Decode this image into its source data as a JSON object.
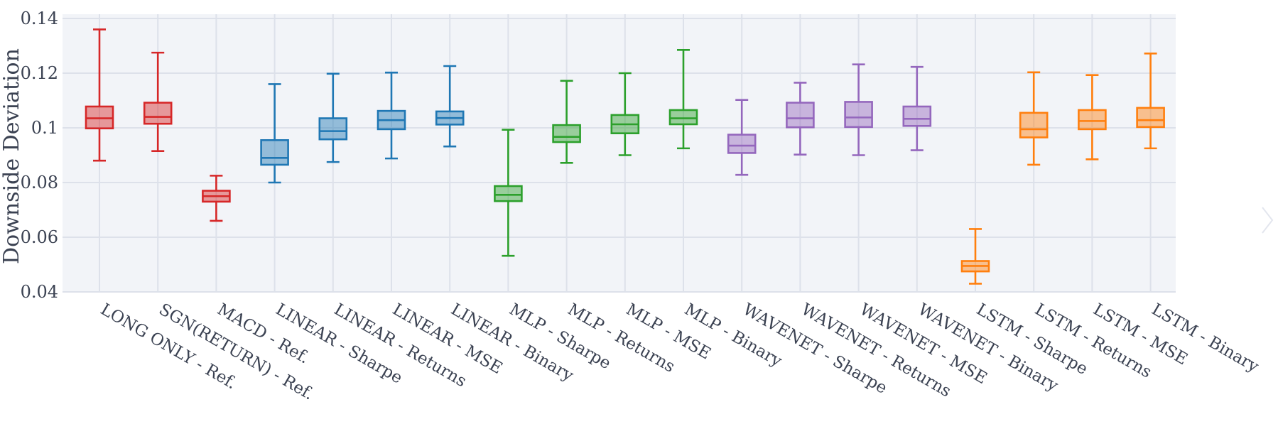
{
  "chart_data": {
    "type": "box",
    "title": "",
    "xlabel": "",
    "ylabel": "Downside Deviation",
    "ylim": [
      0.04,
      0.14
    ],
    "y_ticks": [
      {
        "value": 0.04,
        "label": "0.04"
      },
      {
        "value": 0.06,
        "label": "0.06"
      },
      {
        "value": 0.08,
        "label": "0.08"
      },
      {
        "value": 0.1,
        "label": "0.1"
      },
      {
        "value": 0.12,
        "label": "0.12"
      },
      {
        "value": 0.14,
        "label": "0.14"
      }
    ],
    "grid": true,
    "categories": [
      "LONG ONLY - Ref.",
      "SGN(RETURN) - Ref.",
      "MACD - Ref.",
      "LINEAR - Sharpe",
      "LINEAR - Returns",
      "LINEAR - MSE",
      "LINEAR - Binary",
      "MLP - Sharpe",
      "MLP - Returns",
      "MLP - MSE",
      "MLP - Binary",
      "WAVENET - Sharpe",
      "WAVENET - Returns",
      "WAVENET - MSE",
      "WAVENET - Binary",
      "LSTM - Sharpe",
      "LSTM - Returns",
      "LSTM - MSE",
      "LSTM - Binary"
    ],
    "colors": {
      "ref": "#d62728",
      "linear": "#1f77b4",
      "mlp": "#2ca02c",
      "wavenet": "#9467bd",
      "lstm": "#ff7f0e",
      "plot_bg": "#f2f4f8",
      "grid": "#dde1ea",
      "text": "#3b4252"
    },
    "boxes": [
      {
        "label": "LONG ONLY - Ref.",
        "group": "ref",
        "whisker_low": 0.088,
        "q1": 0.0998,
        "median": 0.1035,
        "q3": 0.1078,
        "whisker_high": 0.136
      },
      {
        "label": "SGN(RETURN) - Ref.",
        "group": "ref",
        "whisker_low": 0.0915,
        "q1": 0.1015,
        "median": 0.104,
        "q3": 0.1092,
        "whisker_high": 0.1275
      },
      {
        "label": "MACD - Ref.",
        "group": "ref",
        "whisker_low": 0.066,
        "q1": 0.073,
        "median": 0.075,
        "q3": 0.077,
        "whisker_high": 0.0825
      },
      {
        "label": "LINEAR - Sharpe",
        "group": "linear",
        "whisker_low": 0.08,
        "q1": 0.0865,
        "median": 0.089,
        "q3": 0.0955,
        "whisker_high": 0.116
      },
      {
        "label": "LINEAR - Returns",
        "group": "linear",
        "whisker_low": 0.0875,
        "q1": 0.0958,
        "median": 0.0988,
        "q3": 0.1035,
        "whisker_high": 0.1198
      },
      {
        "label": "LINEAR - MSE",
        "group": "linear",
        "whisker_low": 0.0888,
        "q1": 0.0995,
        "median": 0.1028,
        "q3": 0.1062,
        "whisker_high": 0.1202
      },
      {
        "label": "LINEAR - Binary",
        "group": "linear",
        "whisker_low": 0.0932,
        "q1": 0.1012,
        "median": 0.1036,
        "q3": 0.106,
        "whisker_high": 0.1226
      },
      {
        "label": "MLP - Sharpe",
        "group": "mlp",
        "whisker_low": 0.0532,
        "q1": 0.0732,
        "median": 0.0755,
        "q3": 0.0787,
        "whisker_high": 0.0993
      },
      {
        "label": "MLP - Returns",
        "group": "mlp",
        "whisker_low": 0.0872,
        "q1": 0.0948,
        "median": 0.0967,
        "q3": 0.101,
        "whisker_high": 0.1172
      },
      {
        "label": "MLP - MSE",
        "group": "mlp",
        "whisker_low": 0.09,
        "q1": 0.098,
        "median": 0.1013,
        "q3": 0.1047,
        "whisker_high": 0.12
      },
      {
        "label": "MLP - Binary",
        "group": "mlp",
        "whisker_low": 0.0925,
        "q1": 0.1013,
        "median": 0.1035,
        "q3": 0.1065,
        "whisker_high": 0.1285
      },
      {
        "label": "WAVENET - Sharpe",
        "group": "wavenet",
        "whisker_low": 0.0828,
        "q1": 0.0908,
        "median": 0.0935,
        "q3": 0.0975,
        "whisker_high": 0.1102
      },
      {
        "label": "WAVENET - Returns",
        "group": "wavenet",
        "whisker_low": 0.0902,
        "q1": 0.1002,
        "median": 0.1035,
        "q3": 0.1092,
        "whisker_high": 0.1165
      },
      {
        "label": "WAVENET - MSE",
        "group": "wavenet",
        "whisker_low": 0.09,
        "q1": 0.1003,
        "median": 0.1038,
        "q3": 0.1095,
        "whisker_high": 0.1232
      },
      {
        "label": "WAVENET - Binary",
        "group": "wavenet",
        "whisker_low": 0.0918,
        "q1": 0.1007,
        "median": 0.1033,
        "q3": 0.1078,
        "whisker_high": 0.1223
      },
      {
        "label": "LSTM - Sharpe",
        "group": "lstm",
        "whisker_low": 0.043,
        "q1": 0.0475,
        "median": 0.0495,
        "q3": 0.0513,
        "whisker_high": 0.063
      },
      {
        "label": "LSTM - Returns",
        "group": "lstm",
        "whisker_low": 0.0865,
        "q1": 0.0965,
        "median": 0.0995,
        "q3": 0.1055,
        "whisker_high": 0.1203
      },
      {
        "label": "LSTM - MSE",
        "group": "lstm",
        "whisker_low": 0.0885,
        "q1": 0.0995,
        "median": 0.1025,
        "q3": 0.1065,
        "whisker_high": 0.1193
      },
      {
        "label": "LSTM - Binary",
        "group": "lstm",
        "whisker_low": 0.0925,
        "q1": 0.1003,
        "median": 0.1028,
        "q3": 0.1073,
        "whisker_high": 0.1272
      }
    ]
  },
  "ui": {
    "next_icon": "chevron-right-icon"
  }
}
